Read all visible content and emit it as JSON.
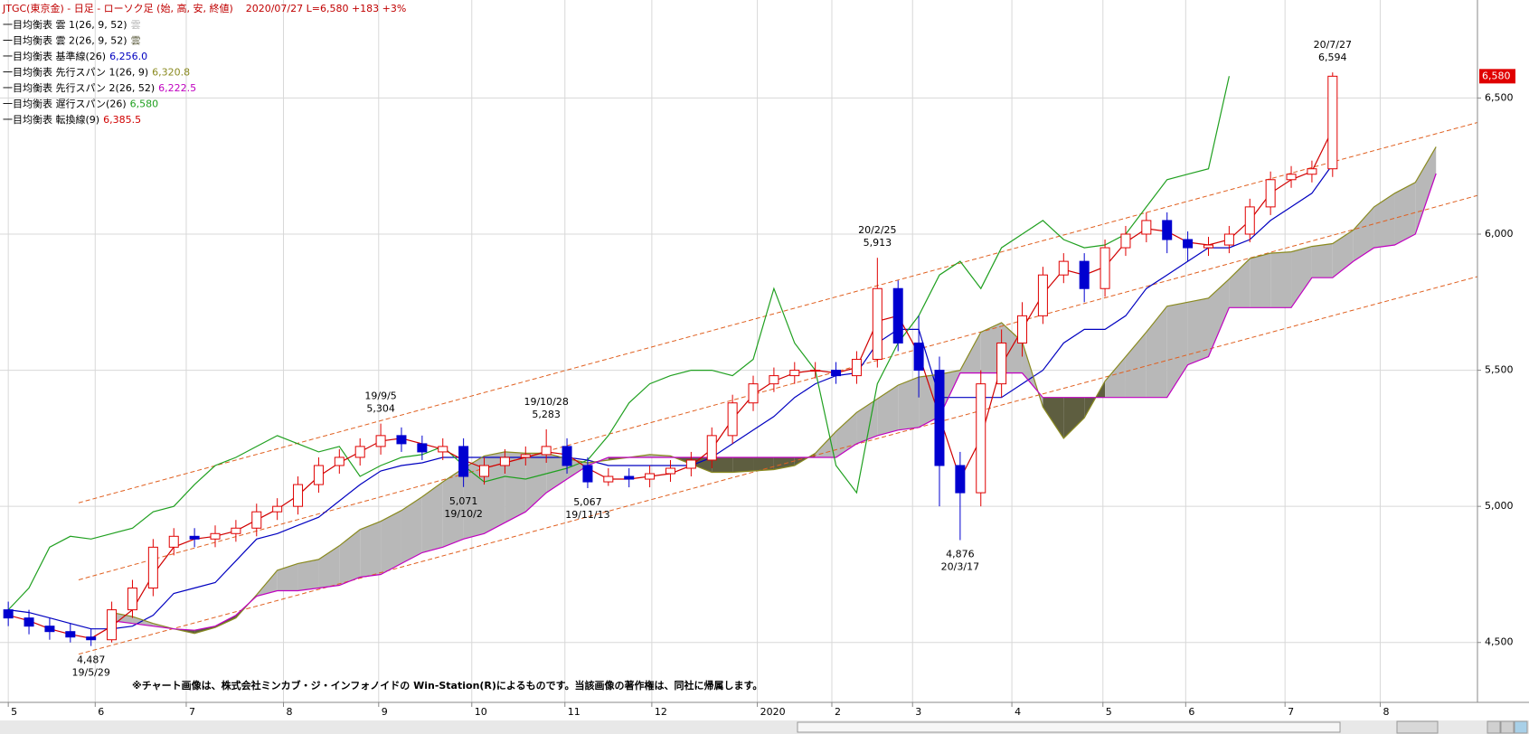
{
  "chart_data": {
    "type": "candlestick",
    "title": "JTGC(東京金) - 日足 - ローソク足 (始, 高, 安, 終値)",
    "subtitle": "2020/07/27  L=6,580  +183   +3%",
    "footnote": "※チャート画像は、株式会社ミンカブ・ジ・インフォノイドの Win-Station(R)によるものです。当該画像の著作権は、同社に帰属します。",
    "up_color": "#e00000",
    "down_color": "#0000d0",
    "xlim": [
      -0.4,
      71
    ],
    "ylim": [
      4280,
      6860
    ],
    "yticks": [
      {
        "value": 4500,
        "label": "4,500"
      },
      {
        "value": 5000,
        "label": "5,000"
      },
      {
        "value": 5500,
        "label": "5,500"
      },
      {
        "value": 6000,
        "label": "6,000"
      },
      {
        "value": 6500,
        "label": "6,500"
      }
    ],
    "xticks": [
      {
        "value": 0,
        "label": "5"
      },
      {
        "value": 4.2,
        "label": "6"
      },
      {
        "value": 8.6,
        "label": "7"
      },
      {
        "value": 13.3,
        "label": "8"
      },
      {
        "value": 17.9,
        "label": "9"
      },
      {
        "value": 22.4,
        "label": "10"
      },
      {
        "value": 26.9,
        "label": "11"
      },
      {
        "value": 31.1,
        "label": "12"
      },
      {
        "value": 36.2,
        "label": "2020"
      },
      {
        "value": 39.8,
        "label": "2"
      },
      {
        "value": 43.7,
        "label": "3"
      },
      {
        "value": 48.5,
        "label": "4"
      },
      {
        "value": 52.9,
        "label": "5"
      },
      {
        "value": 56.9,
        "label": "6"
      },
      {
        "value": 61.7,
        "label": "7"
      },
      {
        "value": 66.3,
        "label": "8"
      }
    ],
    "grid": true,
    "x": [
      0,
      1,
      2,
      3,
      4,
      5,
      6,
      7,
      8,
      9,
      10,
      11,
      12,
      13,
      14,
      15,
      16,
      17,
      18,
      19,
      20,
      21,
      22,
      23,
      24,
      25,
      26,
      27,
      28,
      29,
      30,
      31,
      32,
      33,
      34,
      35,
      36,
      37,
      38,
      39,
      40,
      41,
      42,
      43,
      44,
      45,
      46,
      47,
      48,
      49,
      50,
      51,
      52,
      53,
      54,
      55,
      56,
      57,
      58,
      59,
      60,
      61,
      62,
      63,
      64,
      65,
      66,
      67,
      68,
      69
    ],
    "open": [
      4620,
      4590,
      4560,
      4540,
      4520,
      4510,
      4620,
      4700,
      4850,
      4890,
      4880,
      4900,
      4920,
      4980,
      5000,
      5080,
      5150,
      5180,
      5220,
      5260,
      5230,
      5200,
      5220,
      5110,
      5150,
      5180,
      5190,
      5220,
      5150,
      5090,
      5110,
      5100,
      5120,
      5140,
      5170,
      5260,
      5380,
      5450,
      5480,
      5500,
      5500,
      5480,
      5540,
      5800,
      5600,
      5500,
      5150,
      5050,
      5450,
      5600,
      5700,
      5850,
      5900,
      5800,
      5950,
      6000,
      6050,
      5980,
      5950,
      5960,
      6000,
      6100,
      6200,
      6220,
      6240,
      null,
      null,
      null,
      null,
      null
    ],
    "high": [
      4650,
      4620,
      4590,
      4570,
      4550,
      4650,
      4730,
      4880,
      4920,
      4920,
      4930,
      4950,
      5010,
      5030,
      5110,
      5180,
      5210,
      5250,
      5304,
      5290,
      5260,
      5250,
      5250,
      5180,
      5210,
      5220,
      5283,
      5250,
      5180,
      5140,
      5140,
      5150,
      5170,
      5200,
      5290,
      5410,
      5480,
      5510,
      5530,
      5530,
      5530,
      5570,
      5913,
      5830,
      5700,
      5550,
      5200,
      5500,
      5650,
      5750,
      5880,
      5930,
      5930,
      5980,
      6030,
      6080,
      6080,
      6010,
      5990,
      6030,
      6130,
      6230,
      6250,
      6270,
      6594,
      null,
      null,
      null,
      null,
      null
    ],
    "low": [
      4560,
      4530,
      4510,
      4500,
      4487,
      4500,
      4590,
      4670,
      4820,
      4850,
      4850,
      4870,
      4890,
      4950,
      4970,
      5050,
      5120,
      5150,
      5190,
      5200,
      5170,
      5170,
      5071,
      5080,
      5120,
      5150,
      5160,
      5120,
      5067,
      5075,
      5070,
      5070,
      5090,
      5110,
      5140,
      5230,
      5350,
      5420,
      5450,
      5470,
      5450,
      5450,
      5510,
      5570,
      5400,
      5000,
      4876,
      5000,
      5400,
      5550,
      5670,
      5820,
      5750,
      5770,
      5920,
      5970,
      5930,
      5900,
      5920,
      5930,
      5970,
      6070,
      6170,
      6190,
      6210,
      null,
      null,
      null,
      null,
      null
    ],
    "close": [
      4590,
      4560,
      4540,
      4520,
      4510,
      4620,
      4700,
      4850,
      4890,
      4880,
      4900,
      4920,
      4980,
      5000,
      5080,
      5150,
      5180,
      5220,
      5260,
      5230,
      5200,
      5220,
      5110,
      5150,
      5180,
      5190,
      5220,
      5150,
      5090,
      5110,
      5100,
      5120,
      5140,
      5170,
      5260,
      5380,
      5450,
      5480,
      5500,
      5500,
      5480,
      5540,
      5800,
      5600,
      5500,
      5150,
      5050,
      5450,
      5600,
      5700,
      5850,
      5900,
      5800,
      5950,
      6000,
      6050,
      5980,
      5950,
      5960,
      6000,
      6100,
      6200,
      6220,
      6240,
      6580,
      null,
      null,
      null,
      null,
      null
    ],
    "clouds": [
      {
        "name": "一目均衡表 雲 1(26, 9, 52)",
        "value_label": "雲",
        "color": "#b8b8b8"
      },
      {
        "name": "一目均衡表 雲 2(26, 9, 52)",
        "value_label": "雲",
        "color": "#5e5e40"
      }
    ],
    "series": [
      {
        "name": "一目均衡表 基準線(26)",
        "value_label": "6,256.0",
        "color": "#0000c0",
        "values": [
          4620,
          4610,
          4590,
          4570,
          4550,
          4550,
          4560,
          4600,
          4680,
          4700,
          4720,
          4800,
          4880,
          4900,
          4930,
          4960,
          5020,
          5080,
          5130,
          5150,
          5160,
          5180,
          5180,
          5180,
          5180,
          5180,
          5180,
          5180,
          5170,
          5150,
          5150,
          5150,
          5150,
          5150,
          5180,
          5230,
          5280,
          5330,
          5400,
          5450,
          5480,
          5490,
          5600,
          5650,
          5650,
          5400,
          5400,
          5400,
          5400,
          5450,
          5500,
          5600,
          5650,
          5650,
          5700,
          5800,
          5850,
          5900,
          5950,
          5950,
          5980,
          6050,
          6100,
          6150,
          6256,
          null,
          null,
          null,
          null,
          null
        ]
      },
      {
        "name": "一目均衡表 先行スパン 1(26, 9)",
        "value_label": "6,320.8",
        "color": "#8a8a20",
        "values": [
          null,
          null,
          null,
          null,
          null,
          4610,
          4595,
          4570,
          4550,
          4533,
          4555,
          4590,
          4675,
          4765,
          4790,
          4805,
          4855,
          4915,
          4945,
          4985,
          5035,
          5090,
          5140,
          5185,
          5200,
          5195,
          5195,
          5175,
          5160,
          5170,
          5180,
          5190,
          5185,
          5155,
          5125,
          5125,
          5130,
          5135,
          5150,
          5195,
          5275,
          5345,
          5395,
          5445,
          5475,
          5485,
          5500,
          5640,
          5675,
          5605,
          5365,
          5250,
          5325,
          5460,
          5550,
          5640,
          5735,
          5750,
          5765,
          5835,
          5910,
          5930,
          5935,
          5955,
          5965,
          6015,
          6100,
          6150,
          6190,
          6320.8
        ]
      },
      {
        "name": "一目均衡表 先行スパン 2(26, 52)",
        "value_label": "6,222.5",
        "color": "#c000c0",
        "values": [
          null,
          null,
          null,
          null,
          null,
          4580,
          4570,
          4560,
          4550,
          4545,
          4560,
          4600,
          4670,
          4690,
          4690,
          4700,
          4710,
          4740,
          4750,
          4790,
          4830,
          4850,
          4880,
          4900,
          4940,
          4980,
          5050,
          5100,
          5150,
          5180,
          5180,
          5180,
          5180,
          5180,
          5180,
          5180,
          5180,
          5180,
          5180,
          5180,
          5180,
          5230,
          5260,
          5280,
          5290,
          5330,
          5490,
          5490,
          5490,
          5490,
          5400,
          5400,
          5400,
          5400,
          5400,
          5400,
          5400,
          5520,
          5550,
          5730,
          5730,
          5730,
          5730,
          5840,
          5840,
          5900,
          5950,
          5960,
          6000,
          6222.5
        ]
      },
      {
        "name": "一目均衡表 遅行スパン(26)",
        "value_label": "6,580",
        "color": "#20a020",
        "values": [
          4620,
          4700,
          4850,
          4890,
          4880,
          4900,
          4920,
          4980,
          5000,
          5080,
          5150,
          5180,
          5220,
          5260,
          5230,
          5200,
          5220,
          5110,
          5150,
          5180,
          5190,
          5220,
          5150,
          5090,
          5110,
          5100,
          5120,
          5140,
          5170,
          5260,
          5380,
          5450,
          5480,
          5500,
          5500,
          5480,
          5540,
          5800,
          5600,
          5500,
          5150,
          5050,
          5450,
          5600,
          5700,
          5850,
          5900,
          5800,
          5950,
          6000,
          6050,
          5980,
          5950,
          5960,
          6000,
          6100,
          6200,
          6220,
          6240,
          6580,
          null,
          null,
          null,
          null,
          null,
          null,
          null,
          null,
          null,
          null
        ]
      },
      {
        "name": "一目均衡表 転換線(9)",
        "value_label": "6,385.5",
        "color": "#d00000",
        "values": [
          4600,
          4580,
          4550,
          4530,
          4515,
          4560,
          4620,
          4750,
          4850,
          4880,
          4890,
          4910,
          4950,
          4990,
          5040,
          5110,
          5160,
          5200,
          5240,
          5250,
          5230,
          5210,
          5170,
          5140,
          5160,
          5180,
          5200,
          5190,
          5140,
          5100,
          5100,
          5110,
          5120,
          5150,
          5210,
          5320,
          5410,
          5460,
          5490,
          5500,
          5490,
          5510,
          5680,
          5700,
          5560,
          5330,
          5100,
          5250,
          5520,
          5650,
          5780,
          5870,
          5850,
          5880,
          5970,
          6020,
          6010,
          5970,
          5960,
          5980,
          6050,
          6150,
          6200,
          6230,
          6385.5,
          null,
          null,
          null,
          null,
          null
        ]
      }
    ],
    "channels": [
      {
        "x": [
          3.4,
          71
        ],
        "values": [
          5013,
          6410
        ]
      },
      {
        "x": [
          3.4,
          71
        ],
        "values": [
          4730,
          6142
        ]
      },
      {
        "x": [
          3.4,
          71
        ],
        "values": [
          4457,
          5844
        ]
      }
    ],
    "channel_color": "#e06020",
    "annotations": [
      {
        "date": "19/5/29",
        "price": 4487,
        "price_label": "4,487",
        "week": 4,
        "position": "below"
      },
      {
        "date": "19/9/5",
        "price": 5304,
        "price_label": "5,304",
        "week": 18,
        "position": "above"
      },
      {
        "date": "19/10/2",
        "price": 5071,
        "price_label": "5,071",
        "week": 22,
        "position": "below"
      },
      {
        "date": "19/10/28",
        "price": 5283,
        "price_label": "5,283",
        "week": 26,
        "position": "above"
      },
      {
        "date": "19/11/13",
        "price": 5067,
        "price_label": "5,067",
        "week": 28,
        "position": "below"
      },
      {
        "date": "20/2/25",
        "price": 5913,
        "price_label": "5,913",
        "week": 42,
        "position": "above"
      },
      {
        "date": "20/3/17",
        "price": 4876,
        "price_label": "4,876",
        "week": 46,
        "position": "below"
      },
      {
        "date": "20/7/27",
        "price": 6594,
        "price_label": "6,594",
        "week": 64,
        "position": "above"
      }
    ],
    "last_price": 6580,
    "last_price_label": "6,580"
  }
}
